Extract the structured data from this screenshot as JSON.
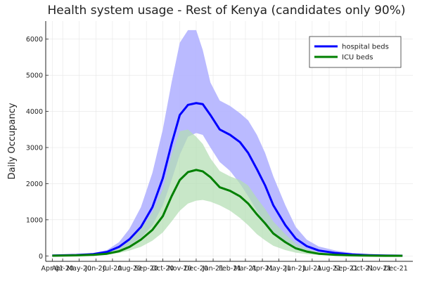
{
  "chart_data": {
    "type": "line",
    "title": "Health system usage - Rest of Kenya (candidates only 90%)",
    "xlabel": "",
    "ylabel": "Daily Occupancy",
    "grid": true,
    "legend_position": "top-right",
    "xlim": [
      "2020-03-20",
      "2022-01-20"
    ],
    "ylim": [
      -150,
      6500
    ],
    "x_ticks": [
      "2020-04-01",
      "2020-04-20",
      "2020-05-20",
      "2020-06-20",
      "2020-07-20",
      "2020-08-20",
      "2020-09-20",
      "2020-10-20",
      "2020-11-20",
      "2020-12-20",
      "2021-01-20",
      "2021-02-20",
      "2021-03-20",
      "2021-04-20",
      "2021-05-20",
      "2021-06-20",
      "2021-07-20",
      "2021-08-20",
      "2021-09-20",
      "2021-10-20",
      "2021-11-20",
      "2021-12-20"
    ],
    "x_tick_labels": [
      "Apr 01",
      "Apr-20",
      "May-20",
      "Jun-20",
      "Jul-20",
      "Aug-20",
      "Sep-20",
      "Oct-20",
      "Nov-20",
      "Dec-20",
      "Jan-21",
      "Feb-21",
      "Mar-21",
      "Apr-21",
      "May-21",
      "Jun-21",
      "Jul-21",
      "Aug-21",
      "Sep-21",
      "Oct-21",
      "Nov-21",
      "Dec-21"
    ],
    "y_ticks": [
      0,
      1000,
      2000,
      3000,
      4000,
      5000,
      6000
    ],
    "y_tick_labels": [
      "0",
      "1000",
      "2000",
      "3000",
      "4000",
      "5000",
      "6000"
    ],
    "x": [
      "2020-04-01",
      "2020-05-15",
      "2020-06-15",
      "2020-07-10",
      "2020-08-01",
      "2020-08-20",
      "2020-09-10",
      "2020-10-01",
      "2020-10-20",
      "2020-11-05",
      "2020-11-20",
      "2020-12-05",
      "2020-12-20",
      "2021-01-01",
      "2021-01-15",
      "2021-02-01",
      "2021-02-20",
      "2021-03-10",
      "2021-03-25",
      "2021-04-10",
      "2021-04-25",
      "2021-05-10",
      "2021-06-01",
      "2021-06-20",
      "2021-07-10",
      "2021-08-01",
      "2021-09-01",
      "2021-10-01",
      "2021-11-01",
      "2021-12-01",
      "2022-01-01"
    ],
    "series": [
      {
        "name": "hospital beds",
        "color": "#0000ff",
        "band_color": "#b3b3ff",
        "values": [
          10,
          25,
          50,
          110,
          250,
          460,
          800,
          1350,
          2150,
          3100,
          3900,
          4180,
          4230,
          4200,
          3900,
          3500,
          3350,
          3150,
          2850,
          2400,
          1950,
          1400,
          850,
          480,
          270,
          150,
          80,
          40,
          20,
          10,
          5
        ],
        "lower": [
          5,
          15,
          30,
          70,
          160,
          300,
          500,
          850,
          1400,
          2100,
          2800,
          3300,
          3400,
          3350,
          3000,
          2600,
          2350,
          2000,
          1650,
          1250,
          900,
          620,
          360,
          200,
          110,
          60,
          30,
          15,
          8,
          4,
          2
        ],
        "upper": [
          15,
          40,
          80,
          160,
          380,
          750,
          1350,
          2300,
          3500,
          4800,
          5900,
          6250,
          6250,
          5700,
          4800,
          4300,
          4150,
          3950,
          3750,
          3350,
          2850,
          2200,
          1400,
          800,
          450,
          260,
          150,
          80,
          40,
          20,
          10
        ]
      },
      {
        "name": "ICU beds",
        "color": "#008000",
        "band_color": "#b3deb3",
        "values": [
          5,
          15,
          30,
          60,
          130,
          250,
          450,
          720,
          1100,
          1650,
          2100,
          2320,
          2380,
          2340,
          2180,
          1900,
          1800,
          1650,
          1450,
          1150,
          900,
          620,
          380,
          210,
          120,
          60,
          30,
          15,
          8,
          4,
          2
        ],
        "lower": [
          2,
          8,
          15,
          35,
          80,
          150,
          250,
          420,
          650,
          950,
          1250,
          1450,
          1530,
          1550,
          1500,
          1400,
          1250,
          1050,
          850,
          600,
          430,
          280,
          160,
          90,
          50,
          25,
          12,
          6,
          3,
          2,
          1
        ],
        "upper": [
          8,
          25,
          45,
          90,
          200,
          420,
          750,
          1200,
          1850,
          2800,
          3450,
          3500,
          3300,
          3100,
          2700,
          2350,
          2200,
          2100,
          1950,
          1600,
          1300,
          950,
          600,
          340,
          190,
          100,
          50,
          25,
          12,
          6,
          3
        ]
      }
    ]
  }
}
